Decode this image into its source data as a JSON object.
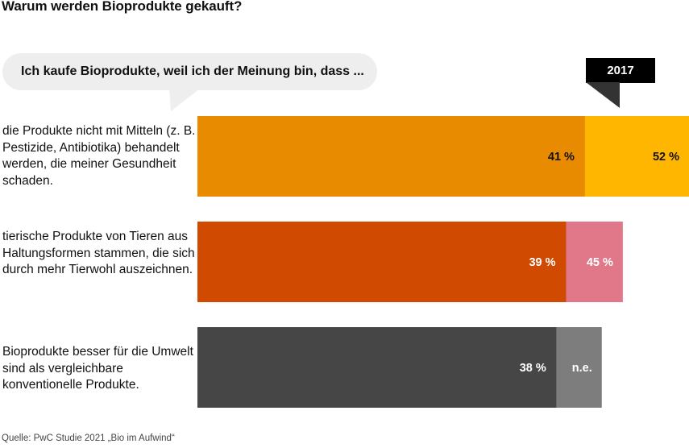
{
  "title": "Warum werden Bioprodukte gekauft?",
  "bubble_text": "Ich kaufe Bioprodukte, weil ich der Meinung bin, dass ...",
  "year_badge": "2017",
  "source": "Quelle: PwC Studie 2021 „Bio im Aufwind“",
  "chart_data": {
    "type": "bar",
    "orientation": "horizontal",
    "categories": [
      "die Produkte nicht mit Mitteln (z. B. Pestizide, Antibiotika) behandelt werden, die meiner Gesundheit schaden.",
      "tierische Produkte von Tieren aus Haltungsformen stammen, die sich durch mehr Tierwohl auszeichnen.",
      "Bioprodukte besser für die Umwelt sind als vergleichbare konventionelle Produkte."
    ],
    "series": [
      {
        "name": "",
        "values": [
          41,
          39,
          38
        ],
        "labels": [
          "41 %",
          "39 %",
          "38 %"
        ],
        "colors": [
          "#e98b00",
          "#d04a02",
          "#464646"
        ],
        "label_colors": [
          "#111111",
          "#ffffff",
          "#ffffff"
        ]
      },
      {
        "name": "2017",
        "values": [
          52,
          45,
          null
        ],
        "labels": [
          "52 %",
          "45 %",
          "n.e."
        ],
        "colors": [
          "#ffb600",
          "#e0788a",
          "#7d7d7d"
        ],
        "label_colors": [
          "#111111",
          "#ffffff",
          "#ffffff"
        ]
      }
    ],
    "xlim": [
      0,
      52
    ],
    "grid": false,
    "legend": "none"
  }
}
